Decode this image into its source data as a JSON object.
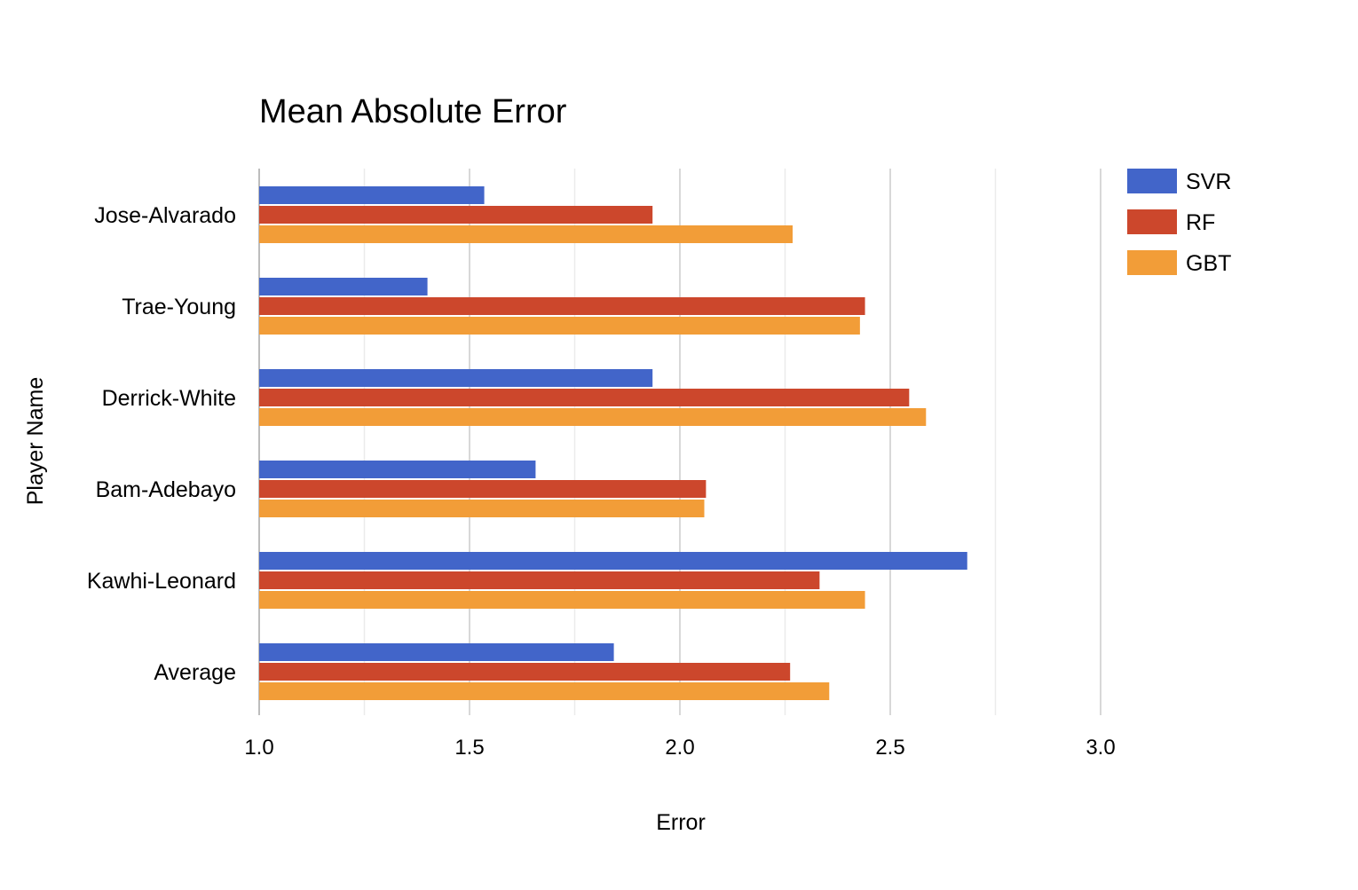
{
  "chart_data": {
    "type": "bar",
    "orientation": "horizontal",
    "title": "Mean Absolute Error",
    "xlabel": "Error",
    "ylabel": "Player Name",
    "categories": [
      "Jose-Alvarado",
      "Trae-Young",
      "Derrick-White",
      "Bam-Adebayo",
      "Kawhi-Leonard",
      "Average"
    ],
    "series": [
      {
        "name": "SVR",
        "color": "#4265c9",
        "values": [
          1.535,
          1.4,
          1.935,
          1.657,
          2.683,
          1.843
        ]
      },
      {
        "name": "RF",
        "color": "#cc472c",
        "values": [
          1.935,
          2.44,
          2.545,
          2.062,
          2.332,
          2.262
        ]
      },
      {
        "name": "GBT",
        "color": "#f29d38",
        "values": [
          2.268,
          2.428,
          2.585,
          2.058,
          2.44,
          2.355
        ]
      }
    ],
    "xlim": [
      1.0,
      3.0
    ],
    "xticks": [
      "1.0",
      "1.5",
      "2.0",
      "2.5",
      "3.0"
    ],
    "xtick_values": [
      1.0,
      1.5,
      2.0,
      2.5,
      3.0
    ],
    "minor_grid_values": [
      1.25,
      1.75,
      2.25,
      2.75
    ],
    "grid": true,
    "legend_position": "right"
  }
}
